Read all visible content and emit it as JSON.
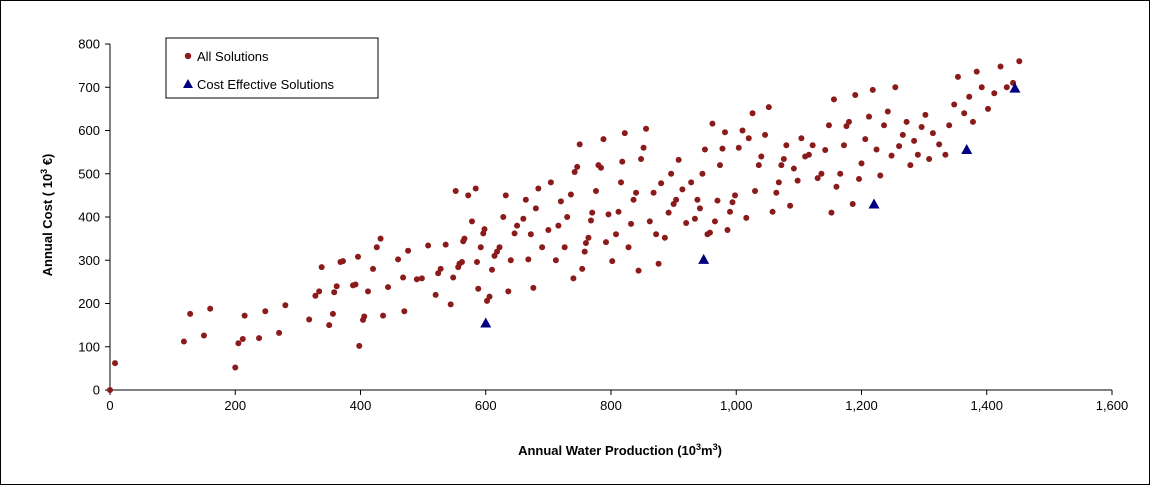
{
  "chart_data": {
    "type": "scatter",
    "xlabel": "Annual Water Production (10³m³)",
    "ylabel": "Annual Cost ( 10³ €)",
    "xlim": [
      0,
      1600
    ],
    "ylim": [
      0,
      800
    ],
    "x_ticks": [
      0,
      200,
      400,
      600,
      800,
      1000,
      1200,
      1400,
      1600
    ],
    "y_ticks": [
      0,
      100,
      200,
      300,
      400,
      500,
      600,
      700,
      800
    ],
    "x_tick_labels": [
      "0",
      "200",
      "400",
      "600",
      "800",
      "1,000",
      "1,200",
      "1,400",
      "1,600"
    ],
    "y_tick_labels": [
      "0",
      "100",
      "200",
      "300",
      "400",
      "500",
      "600",
      "700",
      "800"
    ],
    "grid": false,
    "legend": "top-left",
    "series": [
      {
        "name": "All Solutions",
        "marker": "circle",
        "color": "#8B1A1A",
        "points": [
          [
            0,
            0
          ],
          [
            8,
            62
          ],
          [
            118,
            112
          ],
          [
            128,
            176
          ],
          [
            150,
            126
          ],
          [
            160,
            188
          ],
          [
            200,
            52
          ],
          [
            205,
            108
          ],
          [
            212,
            118
          ],
          [
            215,
            172
          ],
          [
            238,
            120
          ],
          [
            248,
            182
          ],
          [
            270,
            132
          ],
          [
            280,
            196
          ],
          [
            318,
            163
          ],
          [
            328,
            218
          ],
          [
            334,
            228
          ],
          [
            338,
            284
          ],
          [
            350,
            150
          ],
          [
            356,
            176
          ],
          [
            358,
            226
          ],
          [
            362,
            240
          ],
          [
            368,
            296
          ],
          [
            372,
            298
          ],
          [
            388,
            242
          ],
          [
            392,
            244
          ],
          [
            396,
            308
          ],
          [
            398,
            102
          ],
          [
            404,
            162
          ],
          [
            406,
            170
          ],
          [
            412,
            228
          ],
          [
            420,
            280
          ],
          [
            426,
            330
          ],
          [
            432,
            350
          ],
          [
            436,
            172
          ],
          [
            444,
            238
          ],
          [
            460,
            302
          ],
          [
            468,
            260
          ],
          [
            470,
            182
          ],
          [
            476,
            322
          ],
          [
            490,
            256
          ],
          [
            498,
            258
          ],
          [
            508,
            334
          ],
          [
            520,
            220
          ],
          [
            524,
            270
          ],
          [
            528,
            280
          ],
          [
            536,
            336
          ],
          [
            544,
            198
          ],
          [
            548,
            260
          ],
          [
            552,
            460
          ],
          [
            556,
            284
          ],
          [
            558,
            292
          ],
          [
            562,
            296
          ],
          [
            564,
            344
          ],
          [
            566,
            350
          ],
          [
            572,
            450
          ],
          [
            578,
            390
          ],
          [
            584,
            466
          ],
          [
            586,
            296
          ],
          [
            588,
            234
          ],
          [
            592,
            330
          ],
          [
            596,
            362
          ],
          [
            598,
            372
          ],
          [
            602,
            206
          ],
          [
            606,
            216
          ],
          [
            610,
            278
          ],
          [
            614,
            310
          ],
          [
            618,
            320
          ],
          [
            622,
            330
          ],
          [
            628,
            400
          ],
          [
            632,
            450
          ],
          [
            636,
            228
          ],
          [
            640,
            300
          ],
          [
            646,
            362
          ],
          [
            650,
            380
          ],
          [
            660,
            396
          ],
          [
            664,
            440
          ],
          [
            668,
            302
          ],
          [
            672,
            360
          ],
          [
            676,
            236
          ],
          [
            680,
            420
          ],
          [
            684,
            466
          ],
          [
            690,
            330
          ],
          [
            700,
            370
          ],
          [
            704,
            480
          ],
          [
            712,
            300
          ],
          [
            716,
            380
          ],
          [
            720,
            436
          ],
          [
            726,
            330
          ],
          [
            730,
            400
          ],
          [
            736,
            452
          ],
          [
            740,
            258
          ],
          [
            742,
            504
          ],
          [
            746,
            516
          ],
          [
            750,
            568
          ],
          [
            754,
            280
          ],
          [
            758,
            320
          ],
          [
            760,
            340
          ],
          [
            764,
            352
          ],
          [
            768,
            392
          ],
          [
            770,
            410
          ],
          [
            776,
            460
          ],
          [
            780,
            520
          ],
          [
            784,
            514
          ],
          [
            788,
            580
          ],
          [
            792,
            342
          ],
          [
            796,
            406
          ],
          [
            802,
            298
          ],
          [
            808,
            360
          ],
          [
            812,
            412
          ],
          [
            816,
            480
          ],
          [
            818,
            528
          ],
          [
            822,
            594
          ],
          [
            828,
            330
          ],
          [
            832,
            384
          ],
          [
            836,
            440
          ],
          [
            840,
            456
          ],
          [
            844,
            276
          ],
          [
            848,
            534
          ],
          [
            852,
            560
          ],
          [
            856,
            604
          ],
          [
            862,
            390
          ],
          [
            868,
            456
          ],
          [
            872,
            360
          ],
          [
            876,
            292
          ],
          [
            880,
            478
          ],
          [
            886,
            352
          ],
          [
            892,
            410
          ],
          [
            896,
            500
          ],
          [
            900,
            430
          ],
          [
            904,
            440
          ],
          [
            908,
            532
          ],
          [
            914,
            464
          ],
          [
            920,
            386
          ],
          [
            928,
            480
          ],
          [
            934,
            396
          ],
          [
            938,
            440
          ],
          [
            942,
            420
          ],
          [
            946,
            500
          ],
          [
            950,
            556
          ],
          [
            954,
            360
          ],
          [
            958,
            364
          ],
          [
            962,
            616
          ],
          [
            966,
            390
          ],
          [
            970,
            438
          ],
          [
            974,
            520
          ],
          [
            978,
            558
          ],
          [
            982,
            596
          ],
          [
            986,
            370
          ],
          [
            990,
            412
          ],
          [
            994,
            434
          ],
          [
            998,
            450
          ],
          [
            1004,
            560
          ],
          [
            1010,
            600
          ],
          [
            1016,
            398
          ],
          [
            1020,
            582
          ],
          [
            1026,
            640
          ],
          [
            1030,
            460
          ],
          [
            1036,
            520
          ],
          [
            1040,
            540
          ],
          [
            1046,
            590
          ],
          [
            1052,
            654
          ],
          [
            1058,
            412
          ],
          [
            1064,
            456
          ],
          [
            1068,
            480
          ],
          [
            1072,
            520
          ],
          [
            1076,
            534
          ],
          [
            1080,
            566
          ],
          [
            1086,
            426
          ],
          [
            1092,
            512
          ],
          [
            1098,
            484
          ],
          [
            1104,
            582
          ],
          [
            1110,
            540
          ],
          [
            1116,
            544
          ],
          [
            1122,
            566
          ],
          [
            1130,
            490
          ],
          [
            1136,
            500
          ],
          [
            1142,
            555
          ],
          [
            1148,
            612
          ],
          [
            1152,
            410
          ],
          [
            1156,
            672
          ],
          [
            1160,
            470
          ],
          [
            1166,
            500
          ],
          [
            1172,
            566
          ],
          [
            1176,
            610
          ],
          [
            1180,
            620
          ],
          [
            1186,
            430
          ],
          [
            1190,
            682
          ],
          [
            1196,
            488
          ],
          [
            1200,
            524
          ],
          [
            1206,
            580
          ],
          [
            1212,
            632
          ],
          [
            1218,
            694
          ],
          [
            1224,
            556
          ],
          [
            1230,
            496
          ],
          [
            1236,
            612
          ],
          [
            1242,
            644
          ],
          [
            1248,
            542
          ],
          [
            1254,
            700
          ],
          [
            1260,
            564
          ],
          [
            1266,
            590
          ],
          [
            1272,
            620
          ],
          [
            1278,
            520
          ],
          [
            1284,
            576
          ],
          [
            1290,
            544
          ],
          [
            1296,
            608
          ],
          [
            1302,
            636
          ],
          [
            1308,
            534
          ],
          [
            1314,
            594
          ],
          [
            1324,
            568
          ],
          [
            1334,
            544
          ],
          [
            1340,
            612
          ],
          [
            1348,
            660
          ],
          [
            1354,
            724
          ],
          [
            1364,
            640
          ],
          [
            1372,
            678
          ],
          [
            1378,
            620
          ],
          [
            1384,
            736
          ],
          [
            1392,
            700
          ],
          [
            1402,
            650
          ],
          [
            1412,
            686
          ],
          [
            1422,
            748
          ],
          [
            1432,
            700
          ],
          [
            1442,
            710
          ],
          [
            1452,
            760
          ]
        ]
      },
      {
        "name": "Cost Effective Solutions",
        "marker": "triangle",
        "color": "#000080",
        "points": [
          [
            600,
            155
          ],
          [
            948,
            302
          ],
          [
            1220,
            430
          ],
          [
            1368,
            556
          ],
          [
            1445,
            698
          ]
        ]
      }
    ]
  }
}
